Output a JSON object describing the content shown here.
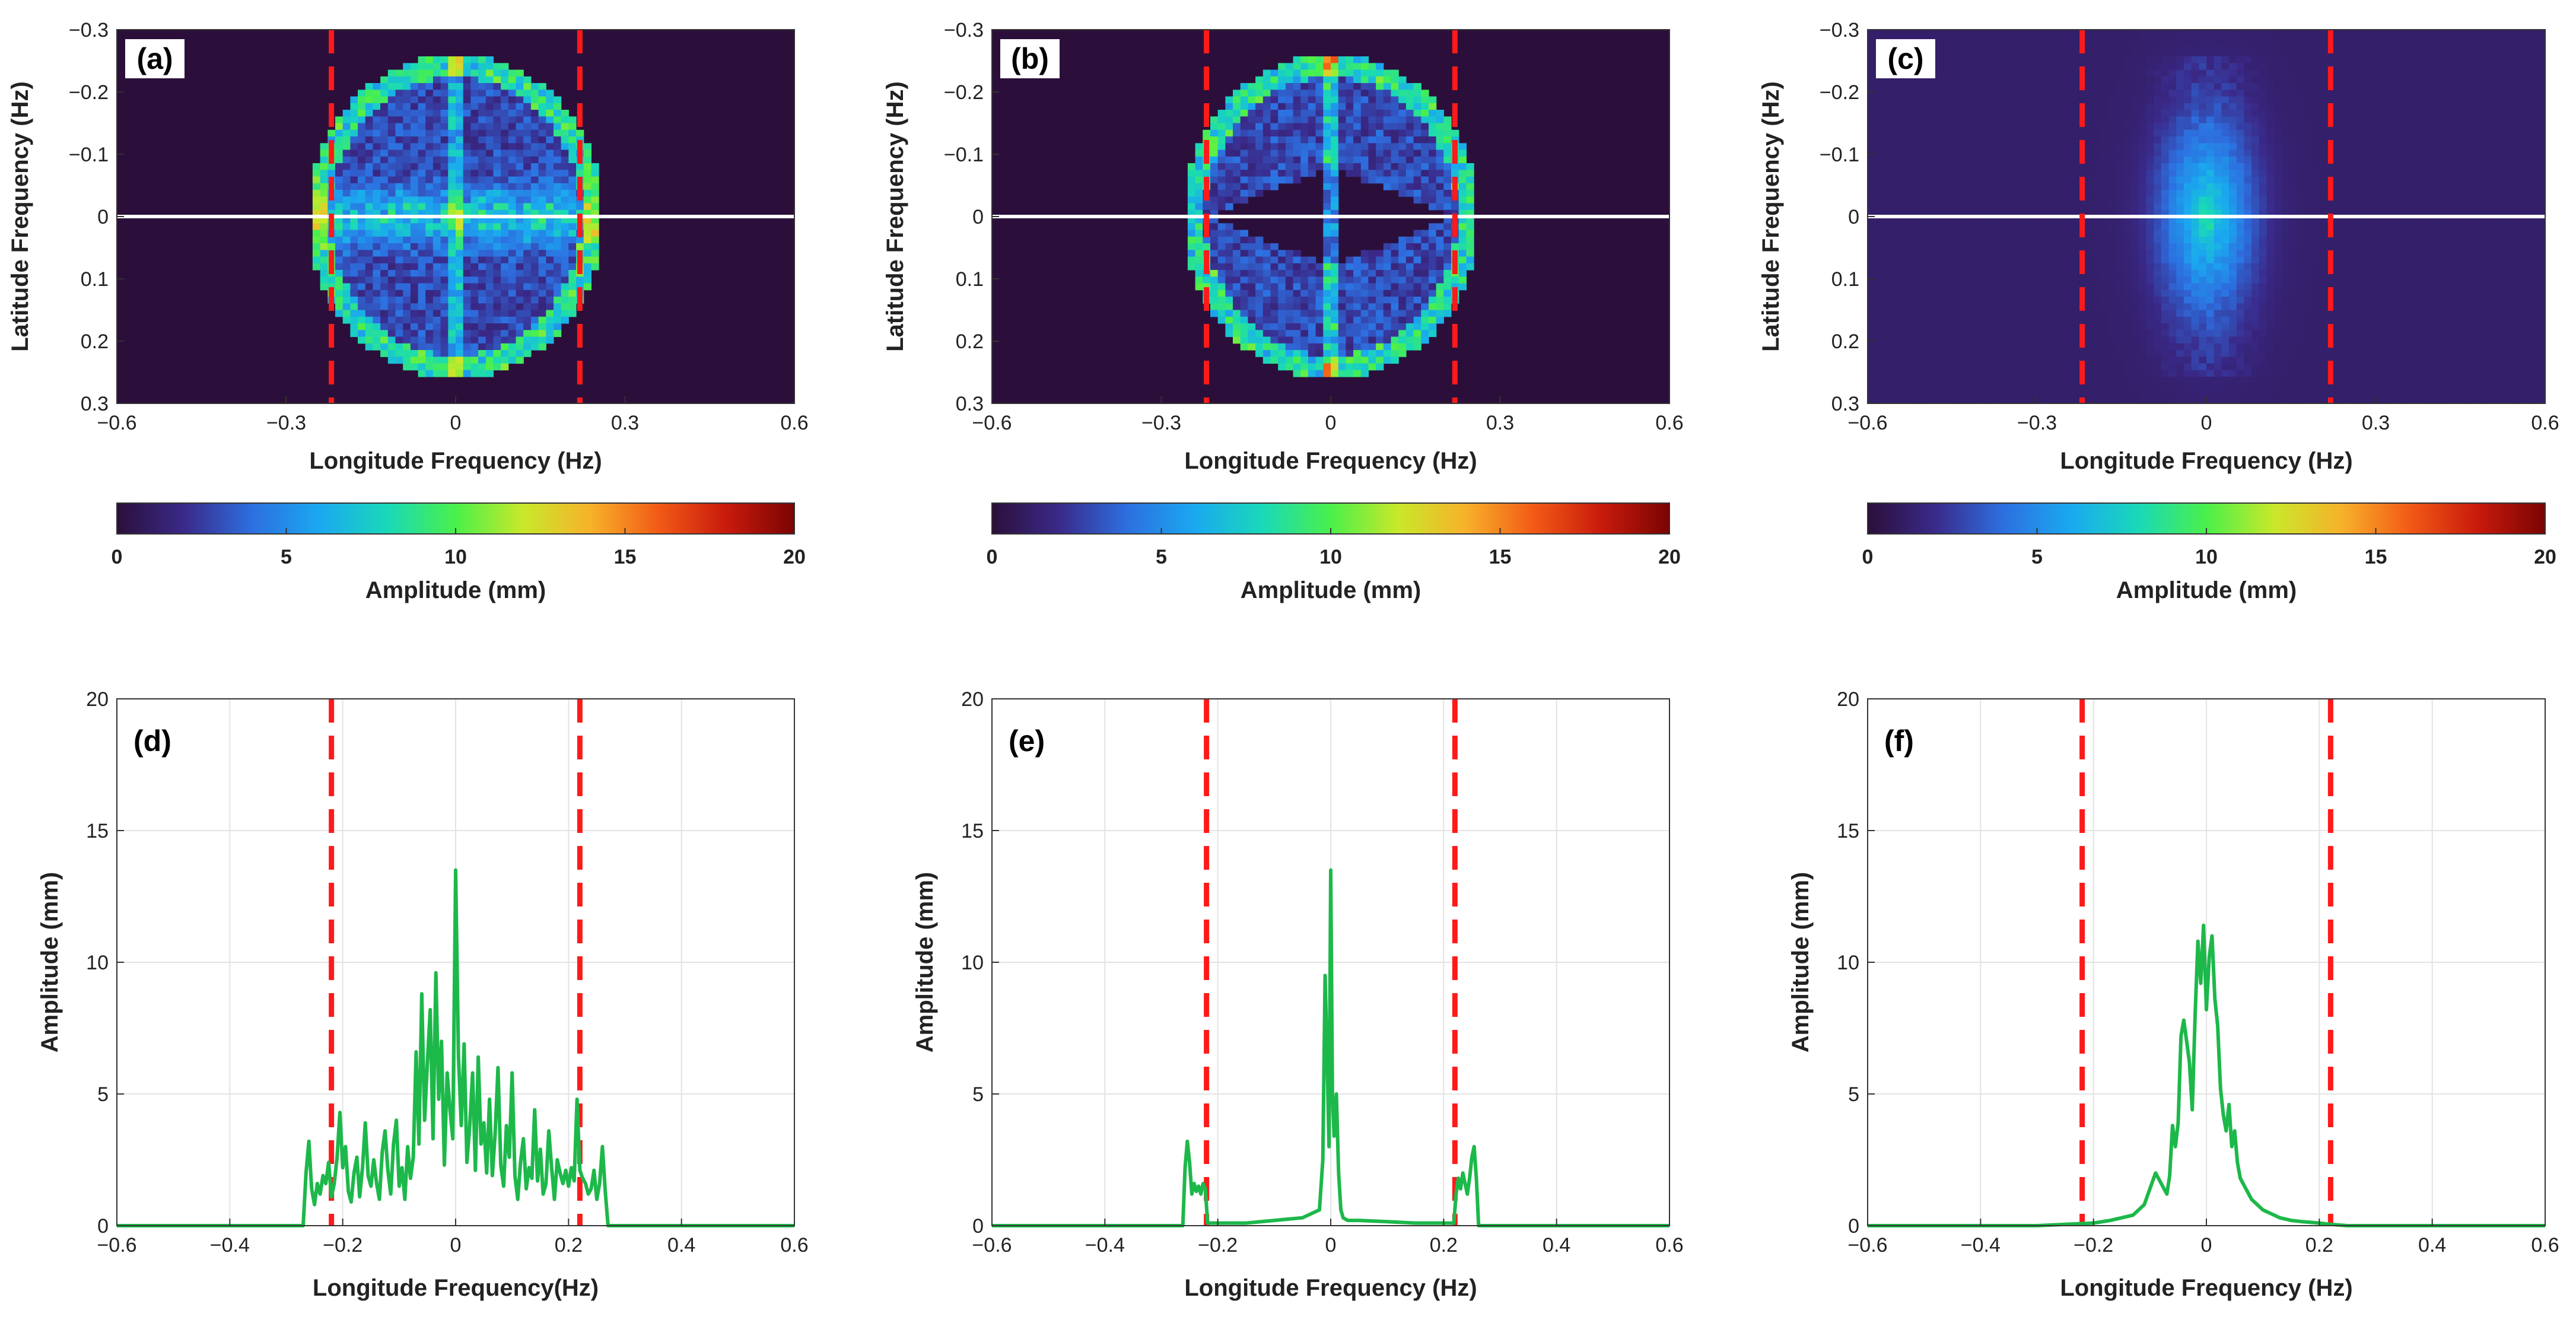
{
  "colorbar": {
    "label": "Amplitude (mm)",
    "ticks": [
      0,
      5,
      10,
      15,
      20
    ],
    "range": [
      0,
      20
    ],
    "colormap": [
      "#2b0f3a",
      "#3a2a8a",
      "#2d6fe0",
      "#1aa9f0",
      "#19d9b8",
      "#4af04a",
      "#c9e82a",
      "#f7b12a",
      "#f25a16",
      "#c81a0c",
      "#7a0403"
    ]
  },
  "colors": {
    "background_map": "#2b0f3a",
    "cutoff_line": "#ff1a1a",
    "center_line": "#ffffff",
    "spectrum_line": "#1db84a"
  },
  "chart_data": [
    {
      "panel": "(a)",
      "type": "heatmap",
      "xlabel": "Longitude Frequency (Hz)",
      "ylabel": "Latitude Frequency (Hz)",
      "xlim": [
        -0.6,
        0.6
      ],
      "ylim": [
        -0.3,
        0.3
      ],
      "y_reversed": true,
      "xticks": [
        "−0.6",
        "−0.3",
        "0",
        "0.3",
        "0.6"
      ],
      "yticks": [
        "−0.3",
        "−0.2",
        "−0.1",
        "0",
        "0.1",
        "0.2",
        "0.3"
      ],
      "cutoff_x": [
        -0.22,
        0.22
      ],
      "center_y": 0,
      "support_radius": 0.26,
      "pattern": "broad"
    },
    {
      "panel": "(b)",
      "type": "heatmap",
      "xlabel": "Longitude Frequency (Hz)",
      "ylabel": "Latitude Frequency (Hz)",
      "xlim": [
        -0.6,
        0.6
      ],
      "ylim": [
        -0.3,
        0.3
      ],
      "y_reversed": true,
      "xticks": [
        "−0.6",
        "−0.3",
        "0",
        "0.3",
        "0.6"
      ],
      "yticks": [
        "−0.3",
        "−0.2",
        "−0.1",
        "0",
        "0.1",
        "0.2",
        "0.3"
      ],
      "cutoff_x": [
        -0.22,
        0.22
      ],
      "center_y": 0,
      "support_radius": 0.26,
      "pattern": "bowtie"
    },
    {
      "panel": "(c)",
      "type": "heatmap",
      "xlabel": "Longitude Frequency (Hz)",
      "ylabel": "Latitude Frequency (Hz)",
      "xlim": [
        -0.6,
        0.6
      ],
      "ylim": [
        -0.3,
        0.3
      ],
      "y_reversed": true,
      "xticks": [
        "−0.6",
        "−0.3",
        "0",
        "0.3",
        "0.6"
      ],
      "yticks": [
        "−0.3",
        "−0.2",
        "−0.1",
        "0",
        "0.1",
        "0.2",
        "0.3"
      ],
      "cutoff_x": [
        -0.22,
        0.22
      ],
      "center_y": 0,
      "support_radius": 0.26,
      "pattern": "central"
    },
    {
      "panel": "(d)",
      "type": "line",
      "xlabel": "Longitude Frequency(Hz)",
      "ylabel": "Amplitude (mm)",
      "xlim": [
        -0.6,
        0.6
      ],
      "ylim": [
        0,
        20
      ],
      "grid": true,
      "xticks": [
        "−0.6",
        "−0.4",
        "−0.2",
        "0",
        "0.2",
        "0.4",
        "0.6"
      ],
      "yticks": [
        "0",
        "5",
        "10",
        "15",
        "20"
      ],
      "cutoff_x": [
        -0.22,
        0.22
      ],
      "series": [
        {
          "x": [
            -0.6,
            -0.27,
            -0.265,
            -0.26,
            -0.255,
            -0.25,
            -0.245,
            -0.24,
            -0.235,
            -0.23,
            -0.225,
            -0.22,
            -0.215,
            -0.21,
            -0.205,
            -0.2,
            -0.195,
            -0.19,
            -0.185,
            -0.18,
            -0.175,
            -0.17,
            -0.165,
            -0.16,
            -0.155,
            -0.15,
            -0.145,
            -0.14,
            -0.135,
            -0.13,
            -0.125,
            -0.12,
            -0.115,
            -0.11,
            -0.105,
            -0.1,
            -0.095,
            -0.09,
            -0.085,
            -0.08,
            -0.075,
            -0.07,
            -0.065,
            -0.06,
            -0.055,
            -0.05,
            -0.045,
            -0.04,
            -0.035,
            -0.03,
            -0.025,
            -0.02,
            -0.015,
            -0.01,
            -0.005,
            0,
            0.005,
            0.01,
            0.015,
            0.02,
            0.025,
            0.03,
            0.035,
            0.04,
            0.045,
            0.05,
            0.055,
            0.06,
            0.065,
            0.07,
            0.075,
            0.08,
            0.085,
            0.09,
            0.095,
            0.1,
            0.105,
            0.11,
            0.115,
            0.12,
            0.125,
            0.13,
            0.135,
            0.14,
            0.145,
            0.15,
            0.155,
            0.16,
            0.165,
            0.17,
            0.175,
            0.18,
            0.185,
            0.19,
            0.195,
            0.2,
            0.205,
            0.21,
            0.215,
            0.22,
            0.225,
            0.23,
            0.235,
            0.24,
            0.245,
            0.25,
            0.255,
            0.26,
            0.265,
            0.27,
            0.6
          ],
          "y": [
            0,
            0,
            2.0,
            3.2,
            1.4,
            0.8,
            1.6,
            1.2,
            1.9,
            1.6,
            2.4,
            1.1,
            1.6,
            2.6,
            4.3,
            2.2,
            3.0,
            1.3,
            0.9,
            2.0,
            2.6,
            1.1,
            2.2,
            3.9,
            1.9,
            1.5,
            2.5,
            1.6,
            1.0,
            2.8,
            3.6,
            2.1,
            1.2,
            3.1,
            4.0,
            1.5,
            2.2,
            1.0,
            3.0,
            1.8,
            2.6,
            6.6,
            3.1,
            8.8,
            4.0,
            6.2,
            8.2,
            3.3,
            9.6,
            4.8,
            7.0,
            2.3,
            5.8,
            4.4,
            3.3,
            13.5,
            6.4,
            3.8,
            6.9,
            2.4,
            3.8,
            5.8,
            2.1,
            6.4,
            3.1,
            3.9,
            2.0,
            4.8,
            1.9,
            3.5,
            6.0,
            2.3,
            1.5,
            3.8,
            2.6,
            5.8,
            1.9,
            1.0,
            2.4,
            3.3,
            1.4,
            2.2,
            1.8,
            4.4,
            1.7,
            2.9,
            1.2,
            1.6,
            3.6,
            2.2,
            1.0,
            2.5,
            2.0,
            1.6,
            2.1,
            1.5,
            2.2,
            1.7,
            4.8,
            2.1,
            1.8,
            1.6,
            1.2,
            1.4,
            2.1,
            1.0,
            1.6,
            3.0,
            1.3,
            0,
            0
          ]
        }
      ]
    },
    {
      "panel": "(e)",
      "type": "line",
      "xlabel": "Longitude Frequency (Hz)",
      "ylabel": "Amplitude (mm)",
      "xlim": [
        -0.6,
        0.6
      ],
      "ylim": [
        0,
        20
      ],
      "grid": true,
      "xticks": [
        "−0.6",
        "−0.4",
        "−0.2",
        "0",
        "0.2",
        "0.4",
        "0.6"
      ],
      "yticks": [
        "0",
        "5",
        "10",
        "15",
        "20"
      ],
      "cutoff_x": [
        -0.22,
        0.22
      ],
      "series": [
        {
          "x": [
            -0.6,
            -0.262,
            -0.258,
            -0.254,
            -0.25,
            -0.246,
            -0.242,
            -0.238,
            -0.234,
            -0.23,
            -0.226,
            -0.222,
            -0.218,
            -0.2,
            -0.15,
            -0.1,
            -0.05,
            -0.03,
            -0.02,
            -0.014,
            -0.01,
            -0.006,
            -0.003,
            0,
            0.003,
            0.006,
            0.01,
            0.014,
            0.018,
            0.022,
            0.03,
            0.05,
            0.1,
            0.15,
            0.2,
            0.218,
            0.222,
            0.226,
            0.23,
            0.234,
            0.238,
            0.242,
            0.246,
            0.25,
            0.254,
            0.258,
            0.262,
            0.6
          ],
          "y": [
            0,
            0,
            2.2,
            3.2,
            2.4,
            1.2,
            1.6,
            1.3,
            1.5,
            1.2,
            1.6,
            1.4,
            0.1,
            0.1,
            0.1,
            0.2,
            0.3,
            0.5,
            0.6,
            2.5,
            9.5,
            6.0,
            3.0,
            13.5,
            5.0,
            3.4,
            5.0,
            2.0,
            0.6,
            0.3,
            0.2,
            0.2,
            0.15,
            0.1,
            0.1,
            0.1,
            1.2,
            1.8,
            1.4,
            2.0,
            1.6,
            1.2,
            1.8,
            2.6,
            3.0,
            1.8,
            0,
            0
          ]
        }
      ]
    },
    {
      "panel": "(f)",
      "type": "line",
      "xlabel": "Longitude Frequency (Hz)",
      "ylabel": "Amplitude (mm)",
      "xlim": [
        -0.6,
        0.6
      ],
      "ylim": [
        0,
        20
      ],
      "grid": true,
      "xticks": [
        "−0.6",
        "−0.4",
        "−0.2",
        "0",
        "0.2",
        "0.4",
        "0.6"
      ],
      "yticks": [
        "0",
        "5",
        "10",
        "15",
        "20"
      ],
      "cutoff_x": [
        -0.22,
        0.22
      ],
      "series": [
        {
          "x": [
            -0.6,
            -0.3,
            -0.25,
            -0.2,
            -0.17,
            -0.15,
            -0.13,
            -0.12,
            -0.11,
            -0.1,
            -0.09,
            -0.08,
            -0.07,
            -0.065,
            -0.06,
            -0.055,
            -0.05,
            -0.045,
            -0.04,
            -0.035,
            -0.03,
            -0.025,
            -0.02,
            -0.015,
            -0.01,
            -0.005,
            0,
            0.005,
            0.01,
            0.015,
            0.02,
            0.025,
            0.03,
            0.035,
            0.04,
            0.045,
            0.05,
            0.055,
            0.06,
            0.07,
            0.08,
            0.09,
            0.1,
            0.11,
            0.12,
            0.13,
            0.15,
            0.17,
            0.2,
            0.22,
            0.25,
            0.6
          ],
          "y": [
            0,
            0,
            0.05,
            0.1,
            0.2,
            0.3,
            0.4,
            0.6,
            0.8,
            1.4,
            2.0,
            1.6,
            1.2,
            1.9,
            3.8,
            3.0,
            3.9,
            7.2,
            7.8,
            7.0,
            6.2,
            4.4,
            8.0,
            10.8,
            9.2,
            11.4,
            8.2,
            10.2,
            11.0,
            8.6,
            7.6,
            5.2,
            4.2,
            3.6,
            4.6,
            3.0,
            3.6,
            2.4,
            1.8,
            1.4,
            1.0,
            0.8,
            0.6,
            0.5,
            0.4,
            0.3,
            0.2,
            0.15,
            0.1,
            0.05,
            0,
            0
          ]
        }
      ]
    }
  ]
}
